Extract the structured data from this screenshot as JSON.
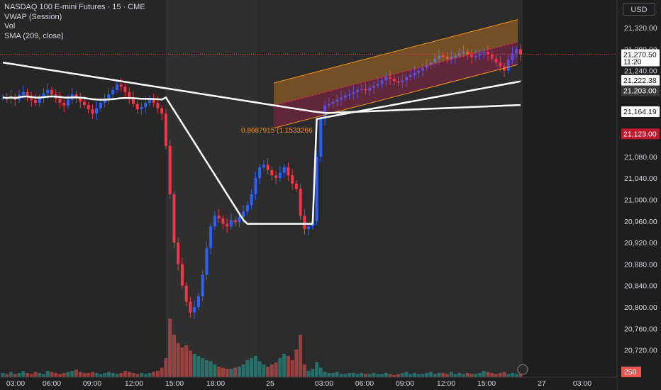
{
  "legend": {
    "title": "NASDAQ 100 E-mini Futures · 15 · CME",
    "vwap": "VWAP (Session)",
    "vol": "Vol",
    "sma": "SMA (209, close)"
  },
  "currency_label": "USD",
  "fib_annotation": "0.8687915 (1.1533266",
  "colors": {
    "background": "#1e1e1e",
    "session_shade": "#2f2f2f",
    "bull": "#2962ff",
    "bear": "#f23645",
    "vol_bull": "#26a69a",
    "vol_bear": "#ef5350",
    "channel": "#f7931a",
    "vwap_line": "#ffffff",
    "current_price": "#f23645"
  },
  "chart_data": {
    "type": "candlestick",
    "y_ticks": [
      "21,320.00",
      "21,280.00",
      "21,240.00",
      "21,080.00",
      "21,040.00",
      "21,000.00",
      "20,960.00",
      "20,920.00",
      "20,880.00",
      "20,840.00",
      "20,800.00",
      "20,760.00",
      "20,720.00"
    ],
    "y_range": [
      20680,
      21345
    ],
    "x_ticks": [
      "03:00",
      "06:00",
      "09:00",
      "12:00",
      "15:00",
      "18:00",
      "25",
      "03:00",
      "06:00",
      "09:00",
      "12:00",
      "15:00",
      "27",
      "03:00"
    ],
    "price_labels": [
      {
        "text": "21,270.50",
        "sub": "11:20",
        "kind": "current"
      },
      {
        "text": "21,222.38",
        "kind": "white"
      },
      {
        "text": "21,203.00",
        "kind": "dark"
      },
      {
        "text": "21,164.19",
        "kind": "white"
      },
      {
        "text": "21,123.00",
        "kind": "red"
      }
    ],
    "volume_label": "250",
    "price_levels": {
      "current": 21270.5,
      "vwap_level": 21222.38,
      "level_2": 21203.0,
      "sma_level": 21164.19,
      "level_4": 21123.0
    },
    "regression_channel": {
      "start_price_mid": 21175,
      "end_price_mid": 21293,
      "width": 42
    },
    "closes": [
      21190,
      21188,
      21192,
      21186,
      21195,
      21200,
      21192,
      21185,
      21180,
      21190,
      21198,
      21204,
      21196,
      21188,
      21180,
      21175,
      21186,
      21196,
      21190,
      21182,
      21176,
      21168,
      21160,
      21170,
      21180,
      21188,
      21196,
      21204,
      21214,
      21210,
      21200,
      21190,
      21178,
      21168,
      21172,
      21180,
      21188,
      21180,
      21170,
      21160,
      21100,
      21010,
      20920,
      20880,
      20840,
      20810,
      20790,
      20800,
      20820,
      20860,
      20910,
      20950,
      20970,
      20965,
      20955,
      20950,
      20962,
      20958,
      20968,
      20978,
      20990,
      21010,
      21040,
      21060,
      21065,
      21055,
      21045,
      21040,
      21050,
      21060,
      21045,
      21030,
      21020,
      20970,
      20945,
      20950,
      20960,
      21080,
      21150,
      21175,
      21178,
      21182,
      21186,
      21190,
      21194,
      21196,
      21200,
      21204,
      21206,
      21203,
      21208,
      21212,
      21215,
      21222,
      21228,
      21225,
      21220,
      21218,
      21222,
      21228,
      21232,
      21236,
      21240,
      21245,
      21250,
      21255,
      21262,
      21268,
      21266,
      21262,
      21265,
      21268,
      21272,
      21275,
      21270,
      21265,
      21268,
      21272,
      21275,
      21270,
      21262,
      21255,
      21248,
      21240,
      21260,
      21272,
      21280,
      21270
    ],
    "volumes": [
      4,
      3,
      5,
      3,
      4,
      6,
      4,
      3,
      5,
      4,
      3,
      6,
      5,
      4,
      3,
      4,
      5,
      6,
      7,
      5,
      4,
      4,
      5,
      4,
      3,
      4,
      5,
      4,
      3,
      4,
      6,
      5,
      4,
      3,
      4,
      3,
      4,
      5,
      6,
      9,
      18,
      55,
      40,
      32,
      28,
      30,
      25,
      22,
      20,
      18,
      16,
      15,
      12,
      10,
      9,
      8,
      8,
      9,
      10,
      12,
      16,
      18,
      20,
      15,
      12,
      10,
      12,
      14,
      18,
      22,
      20,
      16,
      26,
      40,
      12,
      6,
      8,
      14,
      9,
      5,
      4,
      4,
      5,
      3,
      3,
      4,
      4,
      3,
      4,
      3,
      3,
      4,
      3,
      3,
      4,
      3,
      2,
      3,
      4,
      5,
      3,
      4,
      3,
      3,
      4,
      5,
      3,
      4,
      4,
      3,
      5,
      3,
      4,
      3,
      4,
      3,
      3,
      4,
      6,
      5,
      4,
      3,
      4,
      5,
      3,
      4,
      3,
      3
    ]
  }
}
